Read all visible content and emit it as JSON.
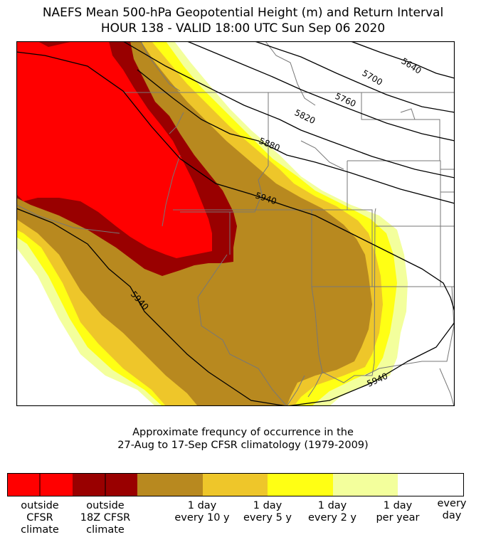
{
  "title": {
    "line1": "NAEFS Mean 500-hPa Geopotential Height (m) and Return Interval",
    "line2": "HOUR 138 - VALID 18:00 UTC Sun Sep 06 2020"
  },
  "map": {
    "region": "Western United States and southwestern Canada",
    "contour_labels": [
      "5640",
      "5700",
      "5760",
      "5820",
      "5880",
      "5940",
      "5940",
      "5940"
    ]
  },
  "caption": {
    "line1": "Approximate frequncy of occurrence in the",
    "line2": "27-Aug to 17-Sep CFSR climatology (1979-2009)"
  },
  "colorbar": {
    "colors": {
      "outside_cfsr": "#ff0000",
      "outside_18z": "#990000",
      "every_10y": "#b8891f",
      "every_5y": "#eec62a",
      "every_2y": "#ffff14",
      "per_year": "#f3ff9c",
      "every_day": "#ffffff"
    },
    "labels": {
      "outside_cfsr": [
        "outside",
        "CFSR",
        "climate"
      ],
      "outside_18z": [
        "outside",
        "18Z CFSR",
        "climate"
      ],
      "every_10y": [
        "1 day",
        "every 10 y"
      ],
      "every_5y": [
        "1 day",
        "every 5 y"
      ],
      "every_2y": [
        "1 day",
        "every 2 y"
      ],
      "per_year": [
        "1 day",
        "per year"
      ],
      "every_day": [
        "every",
        "day"
      ]
    }
  }
}
